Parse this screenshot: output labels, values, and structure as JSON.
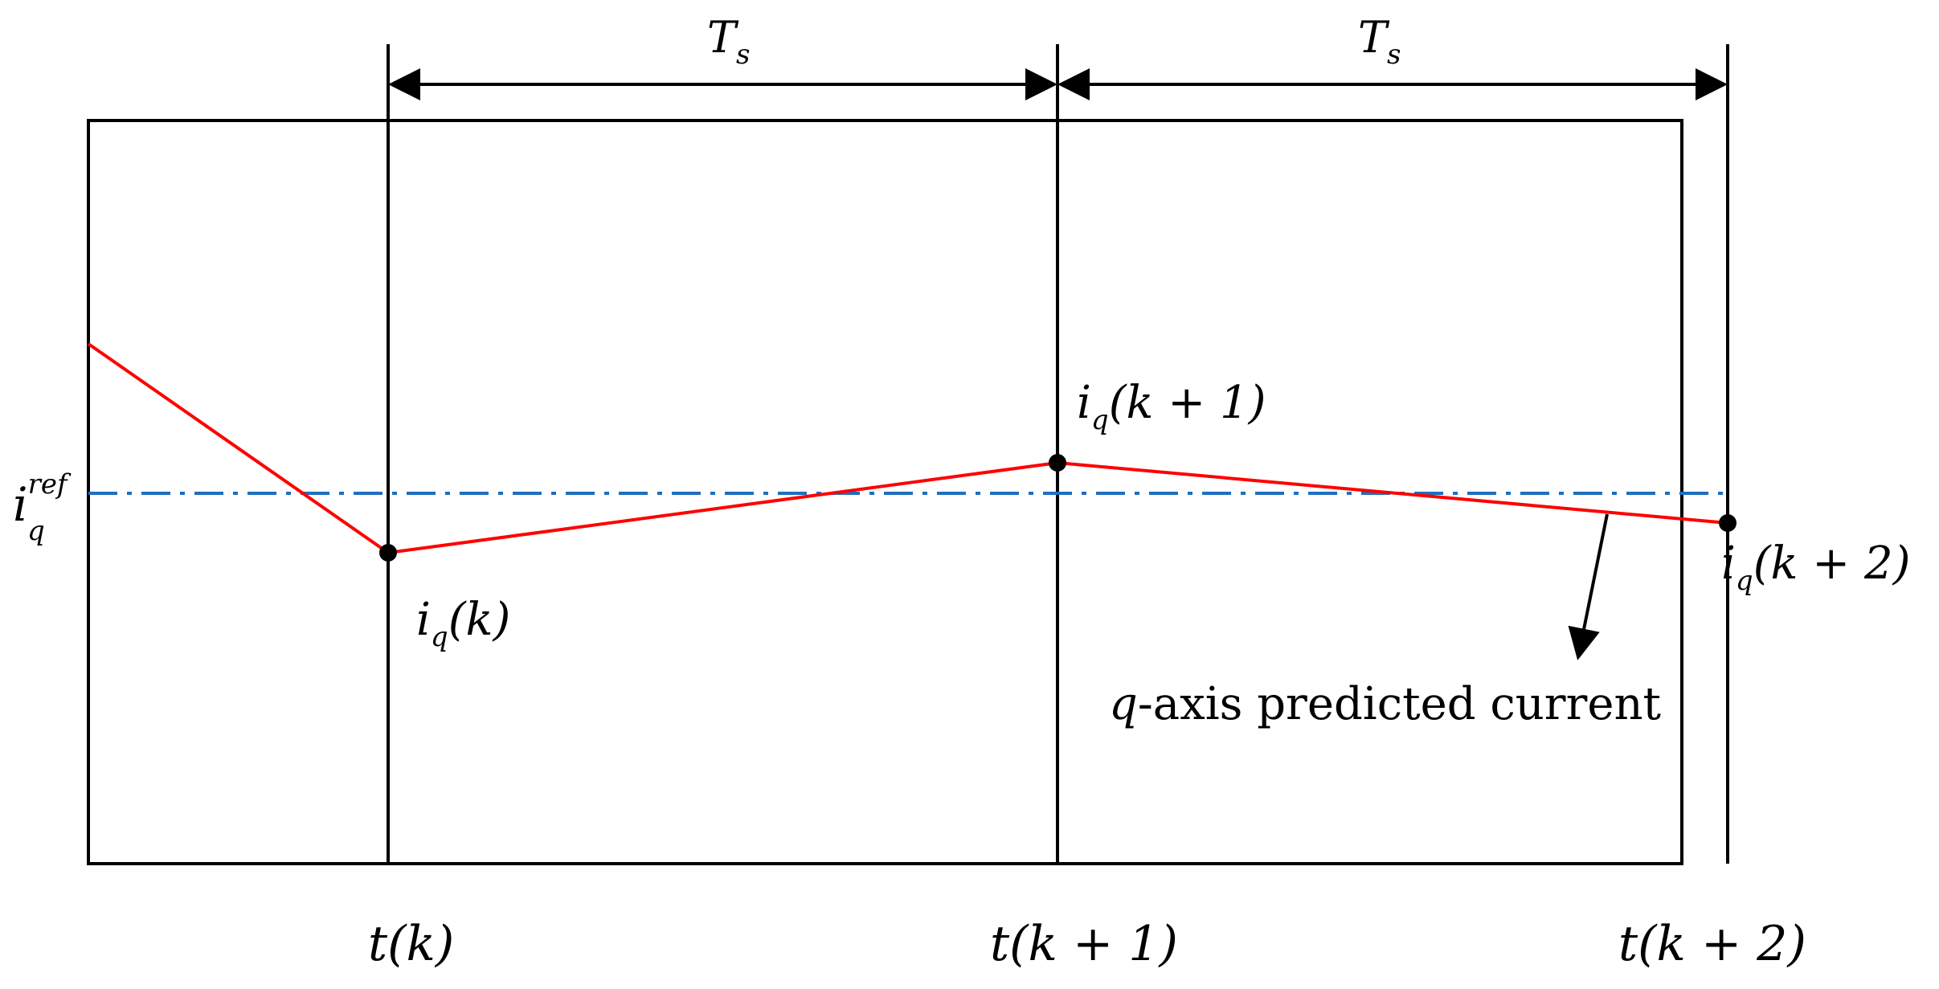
{
  "period_labels": [
    {
      "main": "T",
      "sub": "s"
    },
    {
      "main": "T",
      "sub": "s"
    }
  ],
  "reference_label": {
    "main": "i",
    "sub": "q",
    "sup": "ref"
  },
  "sample_labels": [
    {
      "main": "i",
      "sub": "q",
      "arg": "(k)"
    },
    {
      "main": "i",
      "sub": "q",
      "arg": "(k + 1)"
    },
    {
      "main": "i",
      "sub": "q",
      "arg": "(k + 2)"
    }
  ],
  "time_labels": [
    {
      "main": "t",
      "arg": "(k)"
    },
    {
      "main": "t",
      "arg": "(k + 1)"
    },
    {
      "main": "t",
      "arg": "(k + 2)"
    }
  ],
  "annotation": {
    "var": "q",
    "text": "-axis predicted current"
  },
  "colors": {
    "frame": "#000000",
    "predicted_current": "#ff0000",
    "reference": "#1f6fbf",
    "point": "#000000"
  },
  "line_style": {
    "reference": "dash-dot"
  }
}
